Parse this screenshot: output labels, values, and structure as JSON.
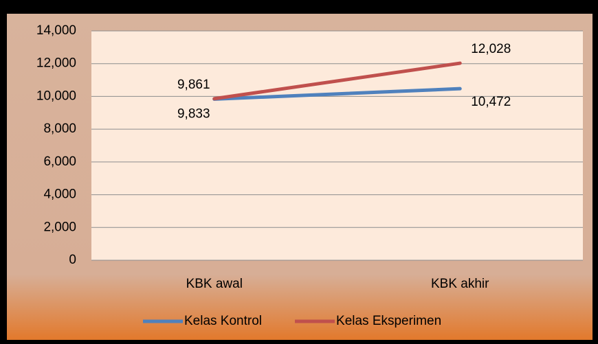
{
  "chart_data": {
    "type": "line",
    "categories": [
      "KBK awal",
      "KBK akhir"
    ],
    "series": [
      {
        "name": "Kelas Kontrol",
        "color": "#4f81bd",
        "values": [
          9833,
          10472
        ],
        "value_labels": [
          "9,833",
          "10,472"
        ]
      },
      {
        "name": "Kelas Eksperimen",
        "color": "#c0504d",
        "values": [
          9861,
          12028
        ],
        "value_labels": [
          "9,861",
          "12,028"
        ]
      }
    ],
    "ylim": [
      0,
      14000
    ],
    "yticks": [
      0,
      {
        "value": 2000,
        "label": "2,000"
      },
      {
        "value": 4000,
        "label": "4,000"
      },
      {
        "value": 6000,
        "label": "6,000"
      },
      {
        "value": 8000,
        "label": "8,000"
      },
      {
        "value": 10000,
        "label": "10,000"
      },
      {
        "value": 12000,
        "label": "12,000"
      },
      {
        "value": 14000,
        "label": "14,000"
      }
    ],
    "grid": true,
    "legend": "bottom"
  }
}
